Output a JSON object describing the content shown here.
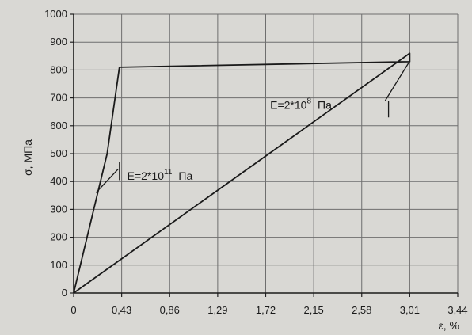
{
  "chart_data": {
    "type": "line",
    "title": "",
    "xlabel": "ε, %",
    "ylabel": "σ, МПа",
    "xlim": [
      0,
      3.44
    ],
    "ylim": [
      0,
      1000
    ],
    "x_ticks": [
      0,
      0.43,
      0.86,
      1.29,
      1.72,
      2.15,
      2.58,
      3.01,
      3.44
    ],
    "x_tick_labels": [
      "0",
      "0,43",
      "0,86",
      "1,29",
      "1,72",
      "2,15",
      "2,58",
      "3,01",
      "3,44"
    ],
    "y_ticks": [
      0,
      100,
      200,
      300,
      400,
      500,
      600,
      700,
      800,
      900,
      1000
    ],
    "y_tick_labels": [
      "0",
      "100",
      "200",
      "300",
      "400",
      "500",
      "600",
      "700",
      "800",
      "900",
      "1000"
    ],
    "grid": true,
    "series": [
      {
        "x": [
          0,
          0.3,
          0.41,
          3.01,
          3.01,
          0
        ],
        "y": [
          0,
          500,
          810,
          830,
          860,
          0
        ]
      }
    ],
    "annotations": [
      {
        "text_base": "E=2*10",
        "exponent": "11",
        "text_unit": "Па",
        "x": 0.48,
        "y": 420
      },
      {
        "text_base": "E=2*10",
        "exponent": "8",
        "text_unit": "Па",
        "x": 1.76,
        "y": 675
      }
    ]
  }
}
